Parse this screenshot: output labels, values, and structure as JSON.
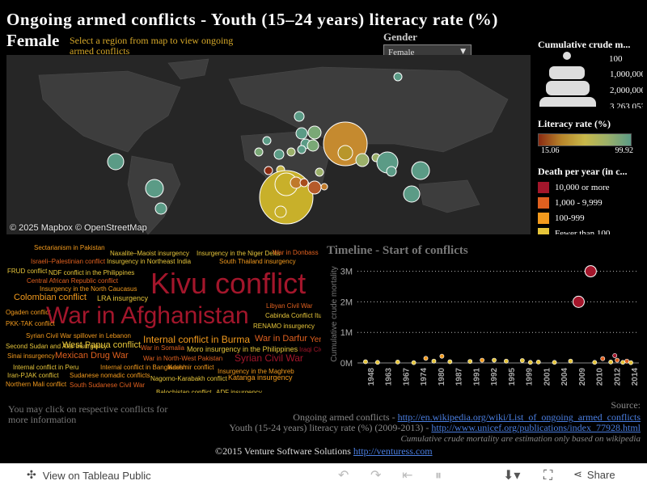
{
  "header": {
    "title": "Ongoing armed conflicts  - Youth (15–24 years) literacy rate (%)",
    "subtitle": "Female",
    "hint": "Select a region from map to view ongoing armed conflicts"
  },
  "gender_filter": {
    "label": "Gender",
    "value": "Female"
  },
  "map": {
    "attribution": "© 2025 Mapbox  © OpenStreetMap"
  },
  "legend_size": {
    "title": "Cumulative crude m...",
    "labels": [
      "100",
      "1,000,000",
      "2,000,000",
      "3,263,053"
    ]
  },
  "legend_color": {
    "title": "Literacy rate (%)",
    "min": "15.06",
    "max": "99.92"
  },
  "legend_death": {
    "title": "Death per year (in c...",
    "items": [
      {
        "label": "10,000 or more",
        "color": "#a3162b"
      },
      {
        "label": "1,000 - 9,999",
        "color": "#e0601f"
      },
      {
        "label": "100-999",
        "color": "#f29a1d"
      },
      {
        "label": "Fewer than 100",
        "color": "#e6c53a"
      }
    ]
  },
  "word_cloud": [
    {
      "text": "Sectarianism in Pakistan",
      "color": "#f29a1d",
      "size": 8
    },
    {
      "text": "Naxalite–Maoist insurgency",
      "color": "#e6c53a",
      "size": 8
    },
    {
      "text": "Insurgency in the Niger Delta",
      "color": "#e6c53a",
      "size": 8
    },
    {
      "text": "War in Donbass",
      "color": "#e0601f",
      "size": 8
    },
    {
      "text": "Israeli–Palestinian conflict",
      "color": "#e0601f",
      "size": 8
    },
    {
      "text": "Insurgency in Northeast India",
      "color": "#e6c53a",
      "size": 8
    },
    {
      "text": "South Thailand insurgency",
      "color": "#f29a1d",
      "size": 8
    },
    {
      "text": "FRUD conflict",
      "color": "#e6c53a",
      "size": 8
    },
    {
      "text": "NDF conflict in the Philippines",
      "color": "#e6c53a",
      "size": 8
    },
    {
      "text": "Kivu conflict",
      "color": "#a3162b",
      "size": 36
    },
    {
      "text": "Central African Republic conflict",
      "color": "#e0601f",
      "size": 8
    },
    {
      "text": "Insurgency in the North Caucasus",
      "color": "#f29a1d",
      "size": 8
    },
    {
      "text": "Colombian conflict",
      "color": "#f29a1d",
      "size": 11
    },
    {
      "text": "LRA insurgency",
      "color": "#e6c53a",
      "size": 9
    },
    {
      "text": "Libyan Civil War",
      "color": "#e0601f",
      "size": 8
    },
    {
      "text": "Ogaden conflict",
      "color": "#f29a1d",
      "size": 8
    },
    {
      "text": "War in Afghanistan",
      "color": "#a3162b",
      "size": 30
    },
    {
      "text": "Cabinda Conflict",
      "color": "#e6c53a",
      "size": 8
    },
    {
      "text": "Iturbi",
      "color": "#e6c53a",
      "size": 8
    },
    {
      "text": "PKK-TAK conflict",
      "color": "#f29a1d",
      "size": 8
    },
    {
      "text": "RENAMO insurgency",
      "color": "#e6c53a",
      "size": 8
    },
    {
      "text": "Syrian Civil War spillover in Lebanon",
      "color": "#f29a1d",
      "size": 8
    },
    {
      "text": "Internal conflict in Burma",
      "color": "#f29a1d",
      "size": 12
    },
    {
      "text": "War in Darfur",
      "color": "#e0601f",
      "size": 11
    },
    {
      "text": "Yemeni",
      "color": "#e0601f",
      "size": 10
    },
    {
      "text": "Second Sudan and Afar insurgency",
      "color": "#e6c53a",
      "size": 8
    },
    {
      "text": "West Papua conflict",
      "color": "#e6c53a",
      "size": 11
    },
    {
      "text": "War in Somalia",
      "color": "#e0601f",
      "size": 8
    },
    {
      "text": "Moro insurgency in the Philippines",
      "color": "#e6c53a",
      "size": 9
    },
    {
      "text": "Iraqi Civil",
      "color": "#a3162b",
      "size": 8
    },
    {
      "text": "Sinai insurgency",
      "color": "#f29a1d",
      "size": 8
    },
    {
      "text": "Mexican Drug War",
      "color": "#e0601f",
      "size": 11
    },
    {
      "text": "War in North-West Pakistan",
      "color": "#e0601f",
      "size": 8
    },
    {
      "text": "Syrian Civil War",
      "color": "#a3162b",
      "size": 12
    },
    {
      "text": "Internal conflict in Peru",
      "color": "#e6c53a",
      "size": 8
    },
    {
      "text": "Internal conflict in Bangladesh",
      "color": "#f29a1d",
      "size": 8
    },
    {
      "text": "Kashmir conflict",
      "color": "#f29a1d",
      "size": 8
    },
    {
      "text": "Insurgency in the Maghreb",
      "color": "#f29a1d",
      "size": 8
    },
    {
      "text": "Iran-PJAK conflict",
      "color": "#e6c53a",
      "size": 8
    },
    {
      "text": "Sudanese nomadic conflicts",
      "color": "#f29a1d",
      "size": 8
    },
    {
      "text": "Nagorno-Karabakh conflict",
      "color": "#e6c53a",
      "size": 8
    },
    {
      "text": "Katanga insurgency",
      "color": "#f29a1d",
      "size": 9
    },
    {
      "text": "Northern Mali conflict",
      "color": "#f29a1d",
      "size": 8
    },
    {
      "text": "South Sudanese Civil War",
      "color": "#e0601f",
      "size": 8
    },
    {
      "text": "Balochistan conflict",
      "color": "#e6c53a",
      "size": 8
    },
    {
      "text": "ADF insurgency",
      "color": "#e6c53a",
      "size": 8
    }
  ],
  "timeline": {
    "title": "Timeline - Start of conflicts"
  },
  "chart_data": {
    "type": "scatter",
    "title": "Timeline - Start of conflicts",
    "ylabel": "Cumulative crude mortality",
    "ylim": [
      0,
      3200000
    ],
    "yticks": [
      "0M",
      "1M",
      "2M",
      "3M"
    ],
    "xlim": [
      1946,
      2016
    ],
    "xticks": [
      "1948",
      "1963",
      "1967",
      "1974",
      "1980",
      "1987",
      "1991",
      "1992",
      "1995",
      "1999",
      "2001",
      "2004",
      "2009",
      "2010",
      "2012",
      "2014"
    ],
    "points": [
      {
        "x": 1948,
        "y": 40000,
        "color": "#e6c53a"
      },
      {
        "x": 1951,
        "y": 20000,
        "color": "#e6c53a"
      },
      {
        "x": 1956,
        "y": 30000,
        "color": "#e6c53a"
      },
      {
        "x": 1960,
        "y": 10000,
        "color": "#e6c53a"
      },
      {
        "x": 1963,
        "y": 150000,
        "color": "#f29a1d"
      },
      {
        "x": 1965,
        "y": 60000,
        "color": "#e6c53a"
      },
      {
        "x": 1967,
        "y": 220000,
        "color": "#f29a1d"
      },
      {
        "x": 1969,
        "y": 40000,
        "color": "#e6c53a"
      },
      {
        "x": 1974,
        "y": 50000,
        "color": "#e6c53a"
      },
      {
        "x": 1977,
        "y": 90000,
        "color": "#f29a1d"
      },
      {
        "x": 1980,
        "y": 90000,
        "color": "#e6c53a"
      },
      {
        "x": 1983,
        "y": 60000,
        "color": "#e6c53a"
      },
      {
        "x": 1987,
        "y": 80000,
        "color": "#e6c53a"
      },
      {
        "x": 1989,
        "y": 20000,
        "color": "#e6c53a"
      },
      {
        "x": 1991,
        "y": 30000,
        "color": "#e6c53a"
      },
      {
        "x": 1995,
        "y": 20000,
        "color": "#e6c53a"
      },
      {
        "x": 1999,
        "y": 60000,
        "color": "#e6c53a"
      },
      {
        "x": 2001,
        "y": 2000000,
        "color": "#a3162b"
      },
      {
        "x": 2004,
        "y": 3000000,
        "color": "#a3162b"
      },
      {
        "x": 2005,
        "y": 20000,
        "color": "#e6c53a"
      },
      {
        "x": 2007,
        "y": 140000,
        "color": "#e0601f"
      },
      {
        "x": 2009,
        "y": 30000,
        "color": "#e6c53a"
      },
      {
        "x": 2010,
        "y": 240000,
        "color": "#a3162b"
      },
      {
        "x": 2010.6,
        "y": 90000,
        "color": "#e0601f"
      },
      {
        "x": 2012,
        "y": 20000,
        "color": "#e6c53a"
      },
      {
        "x": 2013,
        "y": 60000,
        "color": "#e0601f"
      },
      {
        "x": 2014,
        "y": 10000,
        "color": "#e6c53a"
      }
    ]
  },
  "footnote": "You may click on respective conflicts for more information",
  "sources": {
    "heading": "Source:",
    "line1_text": "Ongoing armed conflicts - ",
    "line1_link": "http://en.wikipedia.org/wiki/List_of_ongoing_armed_conflicts",
    "line2_text": "Youth (15-24 years) literacy rate (%) (2009-2013) - ",
    "line2_link": "http://www.unicef.org/publications/index_77928.html",
    "line3": "Cumulative crude mortality are estimation only based on wikipedia"
  },
  "copyright": {
    "text": "©2015 Venture Software Solutions ",
    "link": "http://venturess.com"
  },
  "footer": {
    "view_label": "View on Tableau Public",
    "share_label": "Share",
    "icons": [
      "tableau-icon",
      "undo-icon",
      "redo-icon",
      "revert-icon",
      "pause-icon",
      "download-icon",
      "fullscreen-icon",
      "share-icon"
    ]
  }
}
